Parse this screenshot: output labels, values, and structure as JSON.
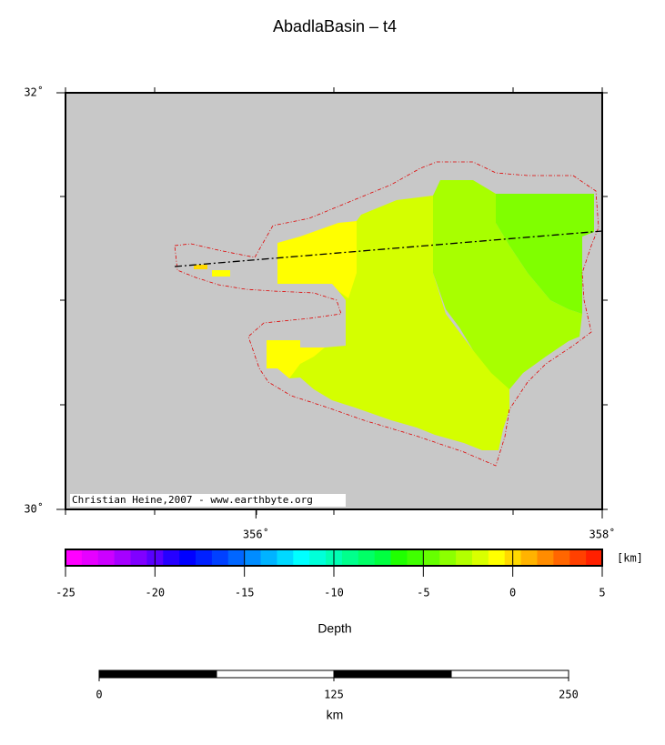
{
  "title": "AbadlaBasin – t4",
  "map": {
    "xlim": [
      354.9,
      358
    ],
    "ylim": [
      30,
      32
    ],
    "xticks": [
      {
        "value": 356,
        "label": "356˚"
      },
      {
        "value": 358,
        "label": "358˚"
      }
    ],
    "yticks": [
      {
        "value": 30,
        "label": "30˚"
      },
      {
        "value": 32,
        "label": "32˚"
      }
    ],
    "credit": "Christian Heine,2007 - www.earthbyte.org"
  },
  "colorbar": {
    "label": "Depth",
    "unit": "[km]",
    "lim": [
      -25,
      5
    ],
    "ticks": [
      -25,
      -20,
      -15,
      -10,
      -5,
      0,
      5
    ],
    "colors": [
      "#ff00ff",
      "#e600ff",
      "#cc00ff",
      "#a600ff",
      "#8000ff",
      "#5900ff",
      "#2600ff",
      "#0000ff",
      "#0020ff",
      "#0040ff",
      "#0066ff",
      "#008cff",
      "#00b3ff",
      "#00d9ff",
      "#00ffff",
      "#00ffd9",
      "#00ffb3",
      "#00ff8c",
      "#00ff66",
      "#00ff40",
      "#20ff00",
      "#40ff00",
      "#66ff00",
      "#8cff00",
      "#b3ff00",
      "#d9ff00",
      "#ffff00",
      "#ffd900",
      "#ffb300",
      "#ff8c00",
      "#ff6600",
      "#ff4000",
      "#ff2000"
    ]
  },
  "scale_bar": {
    "lim": [
      0,
      250
    ],
    "ticks": [
      0,
      125,
      250
    ],
    "unit": "km"
  }
}
